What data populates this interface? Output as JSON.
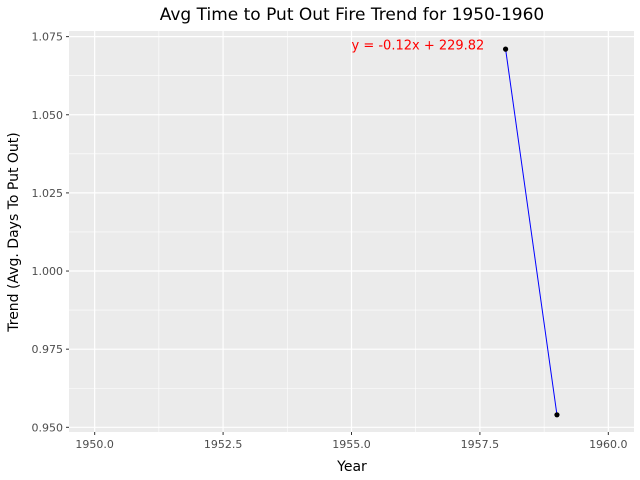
{
  "chart_data": {
    "type": "line",
    "title": "Avg Time to Put Out Fire Trend for 1950-1960",
    "xlabel": "Year",
    "ylabel": "Trend (Avg. Days To Put Out)",
    "xlim": [
      1949.5,
      1960.5
    ],
    "ylim": [
      0.9485,
      1.0768
    ],
    "x_ticks": [
      1950.0,
      1952.5,
      1955.0,
      1957.5,
      1960.0
    ],
    "x_tick_labels": [
      "1950.0",
      "1952.5",
      "1955.0",
      "1957.5",
      "1960.0"
    ],
    "y_ticks": [
      0.95,
      0.975,
      1.0,
      1.025,
      1.05,
      1.075
    ],
    "y_tick_labels": [
      "0.950",
      "0.975",
      "1.000",
      "1.025",
      "1.050",
      "1.075"
    ],
    "grid": true,
    "series": [
      {
        "x": [
          1958,
          1959
        ],
        "y": [
          1.071,
          0.954
        ]
      }
    ],
    "annotation": {
      "text": "y = -0.12x + 229.82",
      "x": 1955.0,
      "y": 1.0725
    },
    "colors": {
      "panel_bg": "#ebebeb",
      "grid_major": "#ffffff",
      "line": "#0000ff",
      "marker": "#000000",
      "annotation": "#ff0000"
    }
  }
}
